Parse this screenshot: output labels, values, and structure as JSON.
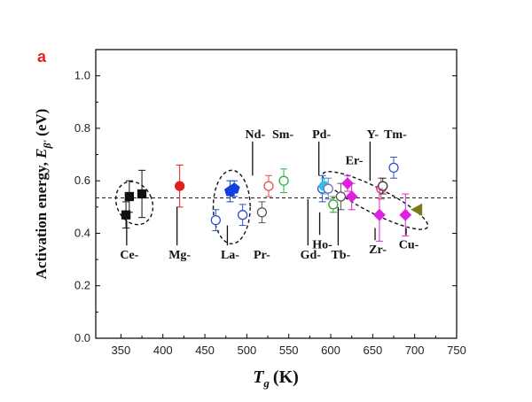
{
  "panel_label": "a",
  "colors": {
    "panel_label": "#e8201a",
    "axis": "#000000"
  },
  "chart_data": {
    "type": "scatter",
    "xlabel": {
      "symbol": "T",
      "subscript": "g",
      "unit": "(K)"
    },
    "ylabel": {
      "text": "Activation energy, ",
      "symbol": "E",
      "subscript": "β'",
      "unit": " (eV)"
    },
    "xlim": [
      320,
      750
    ],
    "ylim": [
      0.0,
      1.1
    ],
    "xticks": [
      350,
      400,
      450,
      500,
      550,
      600,
      650,
      700,
      750
    ],
    "yticks": [
      0.0,
      0.2,
      0.4,
      0.6,
      0.8,
      1.0
    ],
    "xtick_labels": [
      "350",
      "400",
      "450",
      "500",
      "550",
      "600",
      "650",
      "700",
      "750"
    ],
    "ytick_labels": [
      "0.0",
      "0.2",
      "0.4",
      "0.6",
      "0.8",
      "1.0"
    ],
    "reference_line": {
      "y": 0.535,
      "style": "dashed"
    },
    "points": [
      {
        "group": "Ce",
        "x": 356,
        "y": 0.47,
        "err": 0.05,
        "marker": "square",
        "filled": true,
        "color": "#111111"
      },
      {
        "group": "Ce",
        "x": 360,
        "y": 0.54,
        "err": 0.06,
        "marker": "square",
        "filled": true,
        "color": "#111111"
      },
      {
        "group": "Ce",
        "x": 375,
        "y": 0.55,
        "err": 0.09,
        "marker": "square",
        "filled": true,
        "color": "#111111"
      },
      {
        "group": "Mg",
        "x": 420,
        "y": 0.58,
        "err": 0.08,
        "marker": "circle",
        "filled": true,
        "color": "#e02020"
      },
      {
        "group": "La",
        "x": 463,
        "y": 0.45,
        "err": 0.04,
        "marker": "circle",
        "filled": false,
        "color": "#3050d0"
      },
      {
        "group": "La",
        "x": 480,
        "y": 0.56,
        "err": 0.04,
        "marker": "pentagon",
        "filled": true,
        "color": "#1040e0"
      },
      {
        "group": "La",
        "x": 485,
        "y": 0.57,
        "err": 0.03,
        "marker": "pentagon",
        "filled": true,
        "color": "#1040e0"
      },
      {
        "group": "La",
        "x": 495,
        "y": 0.47,
        "err": 0.04,
        "marker": "circle",
        "filled": false,
        "color": "#3050d0"
      },
      {
        "group": "Pr",
        "x": 518,
        "y": 0.48,
        "err": 0.04,
        "marker": "circle",
        "filled": false,
        "color": "#555555"
      },
      {
        "group": "Nd",
        "x": 526,
        "y": 0.58,
        "err": 0.04,
        "marker": "circle",
        "filled": false,
        "color": "#e05050"
      },
      {
        "group": "Sm",
        "x": 544,
        "y": 0.6,
        "err": 0.045,
        "marker": "circle",
        "filled": false,
        "color": "#30b040"
      },
      {
        "group": "Pd",
        "x": 590,
        "y": 0.57,
        "err": 0.05,
        "marker": "circle",
        "filled": false,
        "color": "#3050d0"
      },
      {
        "group": "Pd",
        "x": 592,
        "y": 0.58,
        "err": 0.03,
        "marker": "circle",
        "filled": true,
        "color": "#30c0e0"
      },
      {
        "group": "Ho",
        "x": 603,
        "y": 0.51,
        "err": 0.03,
        "marker": "circle",
        "filled": false,
        "color": "#30a030"
      },
      {
        "group": "Tb",
        "x": 612,
        "y": 0.54,
        "err": 0.05,
        "marker": "circle",
        "filled": false,
        "color": "#555555"
      },
      {
        "group": "Gd",
        "x": 597,
        "y": 0.57,
        "err": 0.04,
        "marker": "circle",
        "filled": false,
        "color": "#7070d0"
      },
      {
        "group": "Er",
        "x": 620,
        "y": 0.59,
        "err": 0.03,
        "marker": "diamond",
        "filled": true,
        "color": "#e020e0"
      },
      {
        "group": "Er",
        "x": 625,
        "y": 0.54,
        "err": 0.05,
        "marker": "diamond",
        "filled": true,
        "color": "#e020e0"
      },
      {
        "group": "Y",
        "x": 660,
        "y": 0.57,
        "err": 0.04,
        "marker": "circle",
        "filled": false,
        "color": "#e05050"
      },
      {
        "group": "Y",
        "x": 662,
        "y": 0.58,
        "err": 0.03,
        "marker": "circle",
        "filled": false,
        "color": "#333333"
      },
      {
        "group": "Zr",
        "x": 658,
        "y": 0.47,
        "err": 0.1,
        "marker": "diamond",
        "filled": true,
        "color": "#e020e0"
      },
      {
        "group": "Tm",
        "x": 675,
        "y": 0.65,
        "err": 0.04,
        "marker": "circle",
        "filled": false,
        "color": "#3050d0"
      },
      {
        "group": "Zr",
        "x": 689,
        "y": 0.47,
        "err": 0.08,
        "marker": "diamond",
        "filled": true,
        "color": "#e020e0"
      },
      {
        "group": "Cu",
        "x": 703,
        "y": 0.49,
        "err": 0.0,
        "marker": "triangle-left",
        "filled": true,
        "color": "#7a7a1a"
      }
    ],
    "ellipses": [
      {
        "cx": 366,
        "cy": 0.515,
        "rx": 21,
        "ry": 0.085,
        "angle": -25
      },
      {
        "cx": 482,
        "cy": 0.5,
        "rx": 22,
        "ry": 0.14,
        "angle": 0
      },
      {
        "cx": 653,
        "cy": 0.525,
        "rx": 70,
        "ry": 0.048,
        "angle": 27
      }
    ],
    "group_labels": [
      {
        "text": "Ce-",
        "x": 360,
        "y": 0.32,
        "leader_to": 0.45
      },
      {
        "text": "Mg-",
        "x": 420,
        "y": 0.32,
        "leader_to": 0.5
      },
      {
        "text": "La-",
        "x": 480,
        "y": 0.32,
        "leader_to": 0.43
      },
      {
        "text": "Pr-",
        "x": 518,
        "y": 0.32,
        "leader_to": null
      },
      {
        "text": "Gd-",
        "x": 576,
        "y": 0.32,
        "leader_to": 0.53
      },
      {
        "text": "Ho-",
        "x": 590,
        "y": 0.36,
        "leader_to": 0.48
      },
      {
        "text": "Tb-",
        "x": 612,
        "y": 0.32,
        "leader_to": 0.5
      },
      {
        "text": "Zr-",
        "x": 656,
        "y": 0.34,
        "leader_to": 0.42
      },
      {
        "text": "Cu-",
        "x": 693,
        "y": 0.36,
        "leader_to": 0.42
      },
      {
        "text": "Nd-",
        "x": 510,
        "y": 0.78,
        "leader_to": 0.62
      },
      {
        "text": "Sm-",
        "x": 543,
        "y": 0.78,
        "leader_to": null
      },
      {
        "text": "Pd-",
        "x": 589,
        "y": 0.78,
        "leader_to": 0.62
      },
      {
        "text": "Er-",
        "x": 628,
        "y": 0.68,
        "leader_to": null
      },
      {
        "text": "Y-",
        "x": 650,
        "y": 0.78,
        "leader_to": 0.6
      },
      {
        "text": "Tm-",
        "x": 677,
        "y": 0.78,
        "leader_to": null
      }
    ]
  }
}
